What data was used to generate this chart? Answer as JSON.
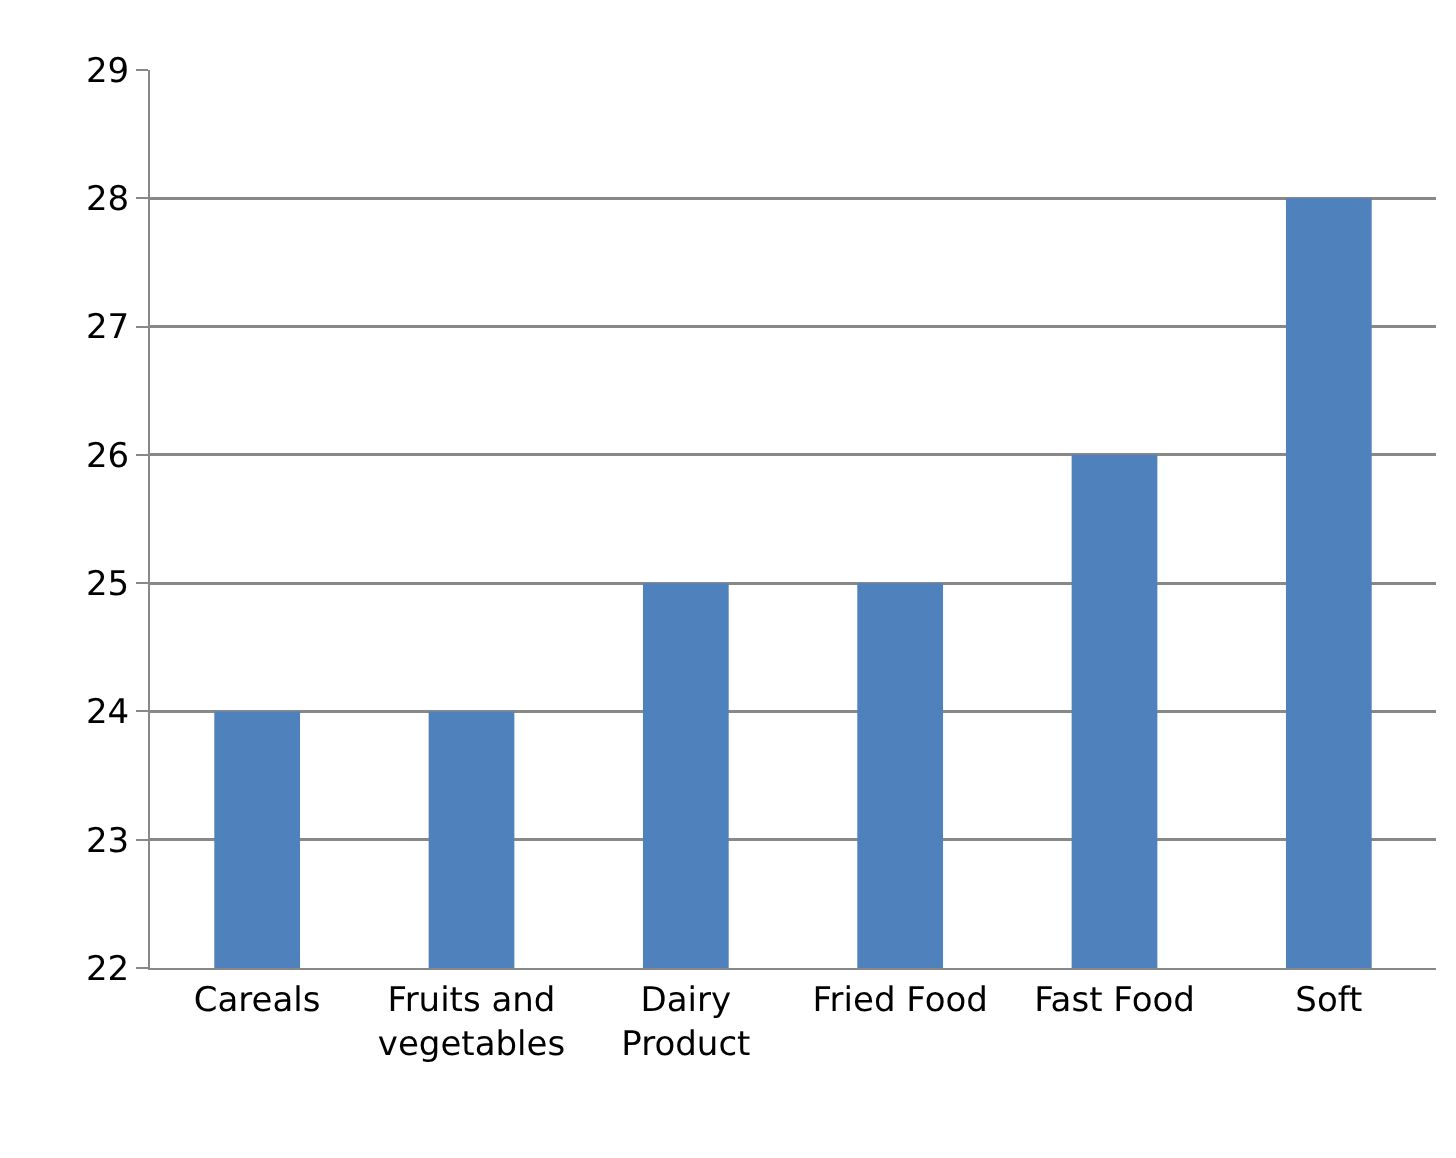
{
  "chart_data": {
    "type": "bar",
    "categories": [
      "Careals",
      "Fruits and vegetables",
      "Dairy Product",
      "Fried Food",
      "Fast Food",
      "Soft"
    ],
    "values": [
      24,
      24,
      25,
      25,
      26,
      28
    ],
    "color": "#4f81bd",
    "ylim": [
      22,
      29
    ],
    "yticks": [
      22,
      23,
      24,
      25,
      26,
      27,
      28,
      29
    ],
    "grid": "y"
  }
}
